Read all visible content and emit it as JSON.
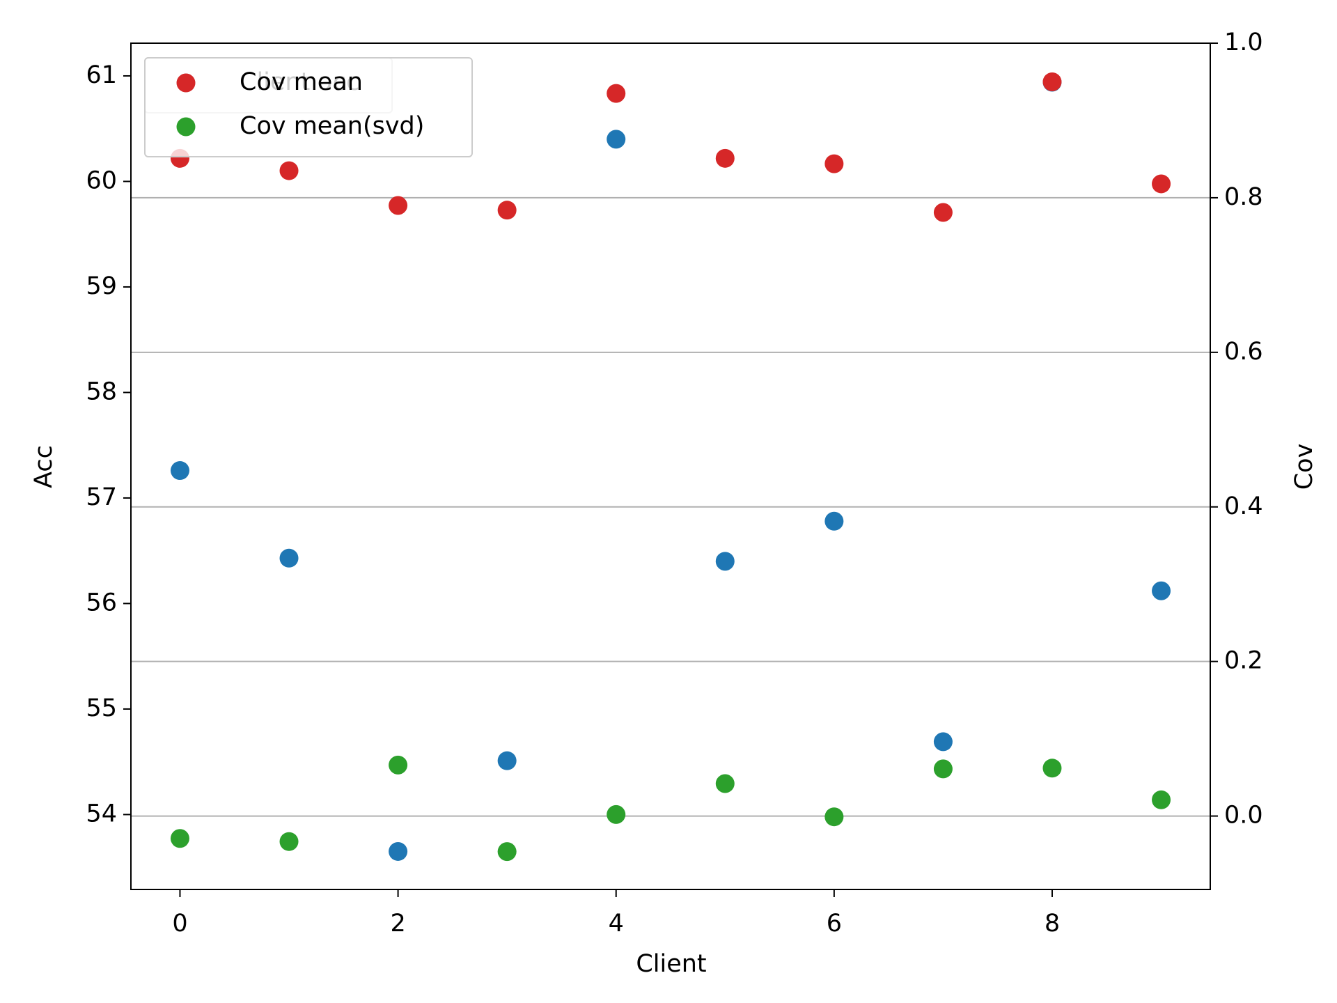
{
  "chart_data": {
    "type": "scatter",
    "x_label": "Client",
    "y_label": "Acc",
    "y2_label": "Cov",
    "x": [
      0,
      1,
      2,
      3,
      4,
      5,
      6,
      7,
      8,
      9
    ],
    "xlim": [
      -0.45,
      9.45
    ],
    "xticks": [
      0,
      2,
      4,
      6,
      8
    ],
    "ylim": [
      53.29,
      61.31
    ],
    "yticks": [
      54,
      55,
      56,
      57,
      58,
      59,
      60,
      61
    ],
    "y2lim": [
      -0.095,
      1.0
    ],
    "y2ticks": [
      {
        "value": 0,
        "label": "0.0"
      },
      0.2,
      0.4,
      0.6,
      0.8,
      {
        "value": 1,
        "label": "1.0"
      }
    ],
    "grid": true,
    "legend": "upper left",
    "series": [
      {
        "name": "Client acc",
        "color": "#1f77b4",
        "values": [
          57.26,
          56.43,
          53.65,
          54.51,
          60.4,
          56.4,
          56.78,
          54.69,
          60.94,
          56.12
        ]
      },
      {
        "name": "Cov mean",
        "color": "#d62728",
        "axis": "y2",
        "values": [
          0.851,
          0.835,
          0.79,
          0.784,
          0.935,
          0.851,
          0.844,
          0.781,
          0.95,
          0.818
        ]
      },
      {
        "name": "Cov mean(svd)",
        "color": "#2ca02c",
        "axis": "y2",
        "values": [
          -0.029,
          -0.033,
          0.066,
          -0.046,
          0.002,
          0.042,
          -0.001,
          0.061,
          0.062,
          0.021
        ]
      }
    ]
  }
}
